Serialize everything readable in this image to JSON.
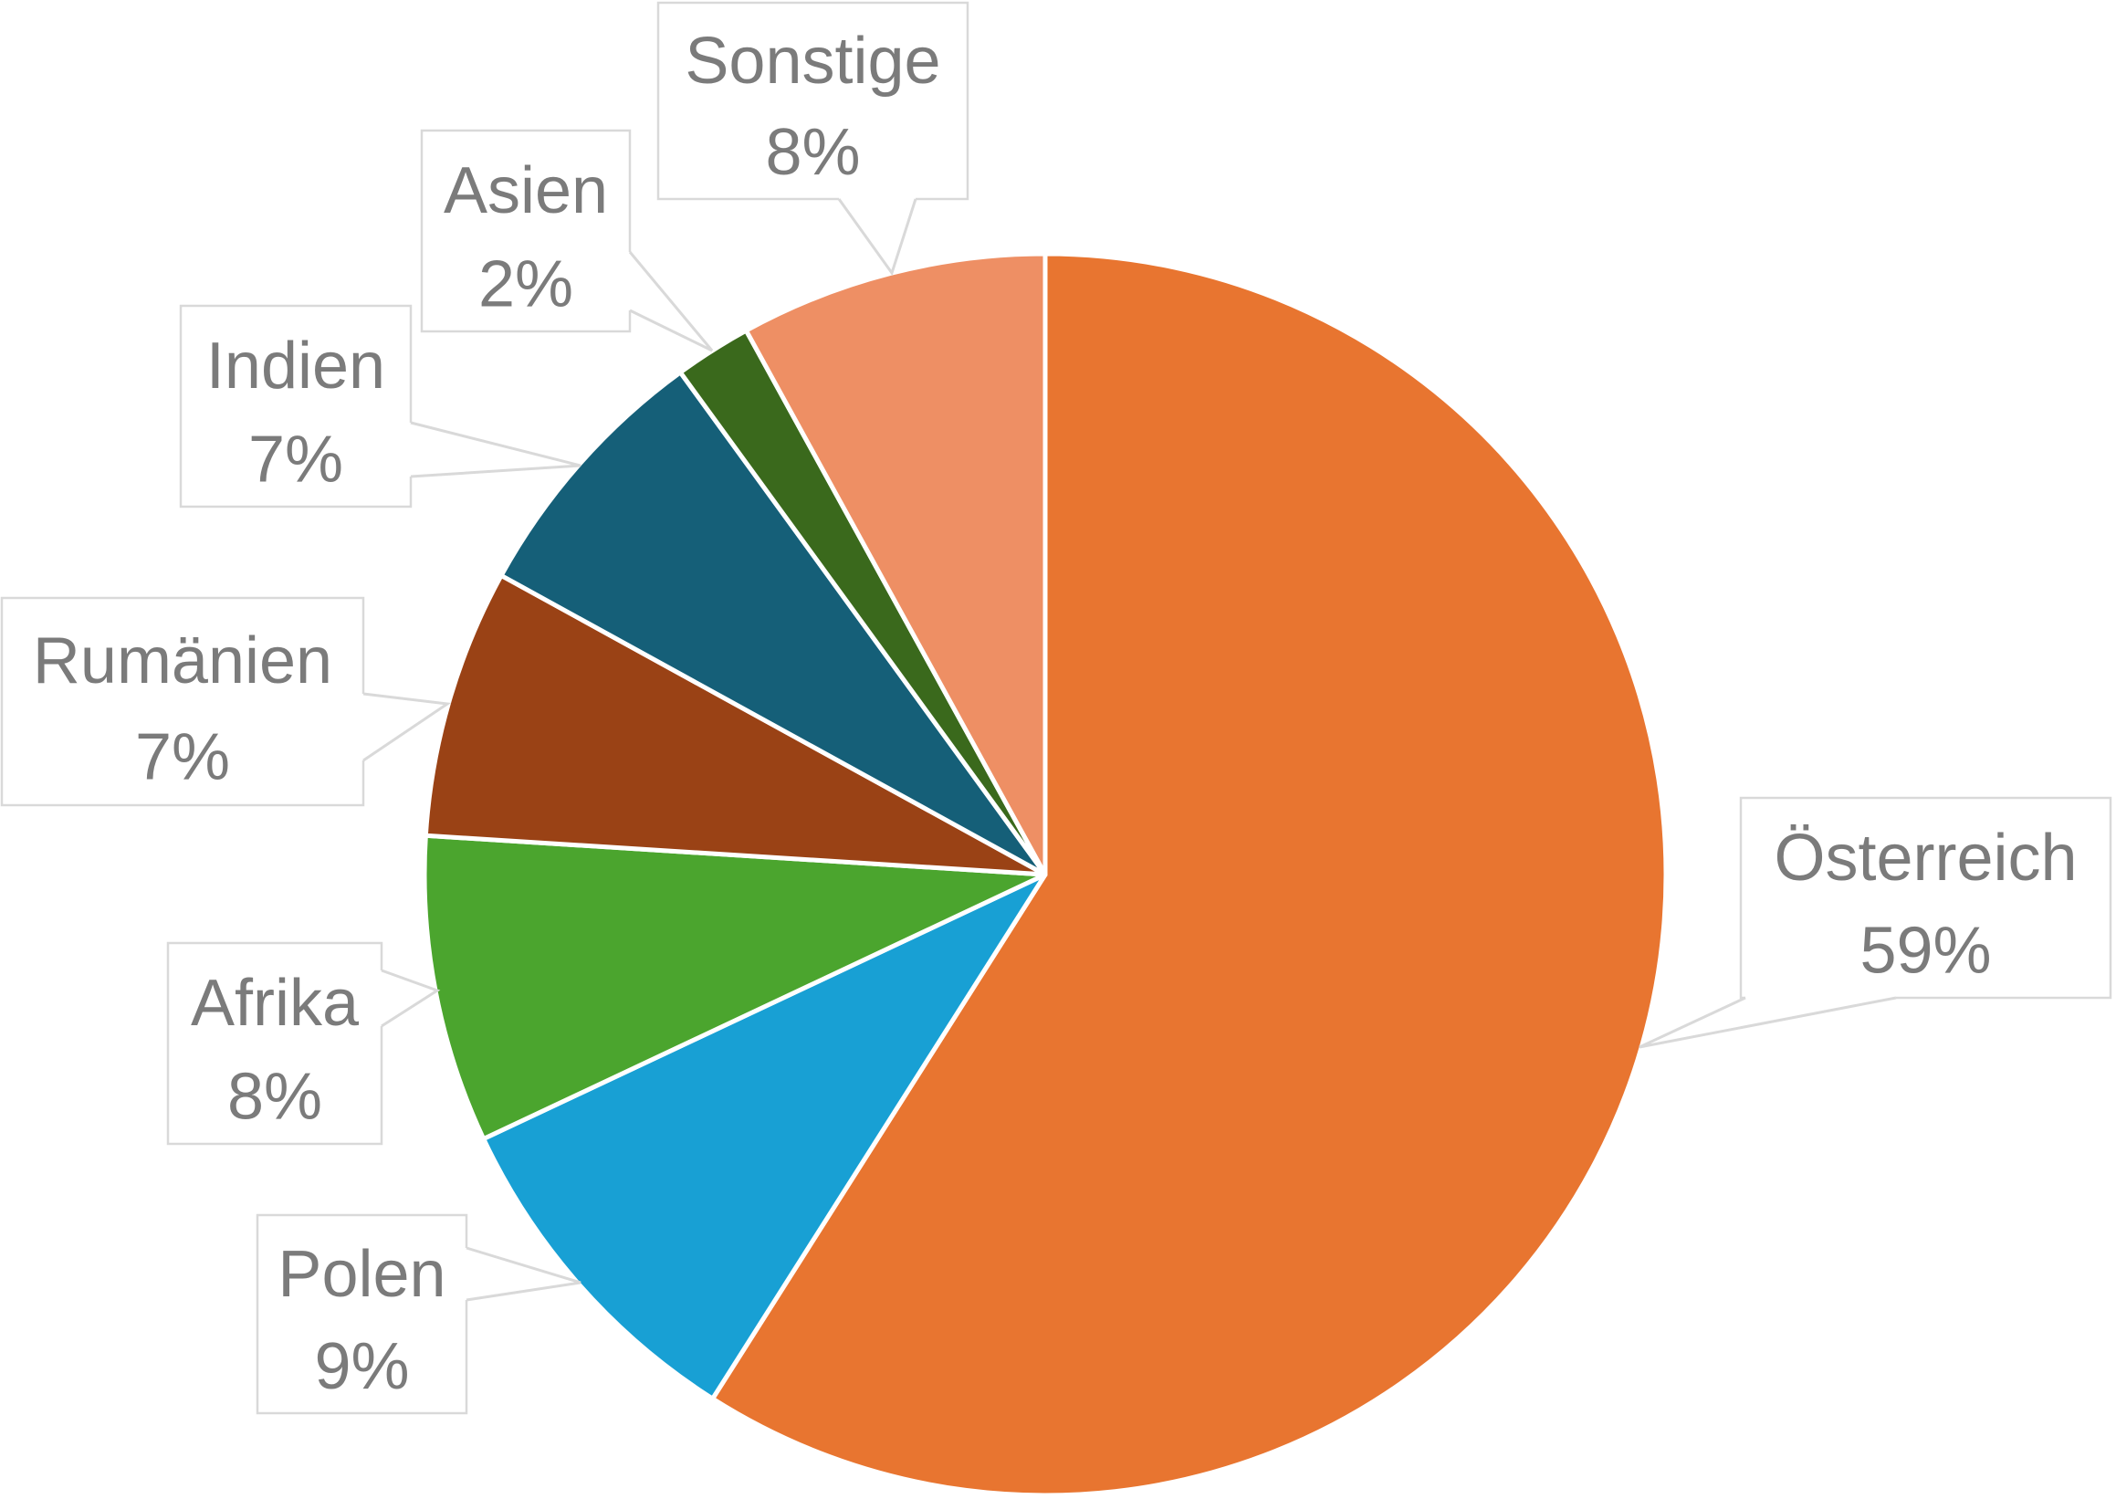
{
  "figure": {
    "background_color": "#FFFFFF",
    "label_text_color": "#7B7B7B",
    "callout_border_color": "#D9D9D9",
    "callout_fill_color": "#FFFFFF",
    "slice_separator_color": "#FFFFFF"
  },
  "chart_data": {
    "type": "pie",
    "title": "",
    "legend_position": "none",
    "start_angle_deg": 0,
    "direction": "clockwise",
    "data_labels_style": "callout boxes with category name and percent",
    "slices": [
      {
        "id": "oesterreich",
        "label": "Österreich",
        "value_pct": 59,
        "percent_label": "59%",
        "color": "#E87530"
      },
      {
        "id": "polen",
        "label": "Polen",
        "value_pct": 9,
        "percent_label": "9%",
        "color": "#18A0D4"
      },
      {
        "id": "afrika",
        "label": "Afrika",
        "value_pct": 8,
        "percent_label": "8%",
        "color": "#4BA52E"
      },
      {
        "id": "rumaenien",
        "label": "Rumänien",
        "value_pct": 7,
        "percent_label": "7%",
        "color": "#9A4215"
      },
      {
        "id": "indien",
        "label": "Indien",
        "value_pct": 7,
        "percent_label": "7%",
        "color": "#155F78"
      },
      {
        "id": "asien",
        "label": "Asien",
        "value_pct": 2,
        "percent_label": "2%",
        "color": "#3A691C"
      },
      {
        "id": "sonstige",
        "label": "Sonstige",
        "value_pct": 8,
        "percent_label": "8%",
        "color": "#EE8F64"
      }
    ]
  }
}
